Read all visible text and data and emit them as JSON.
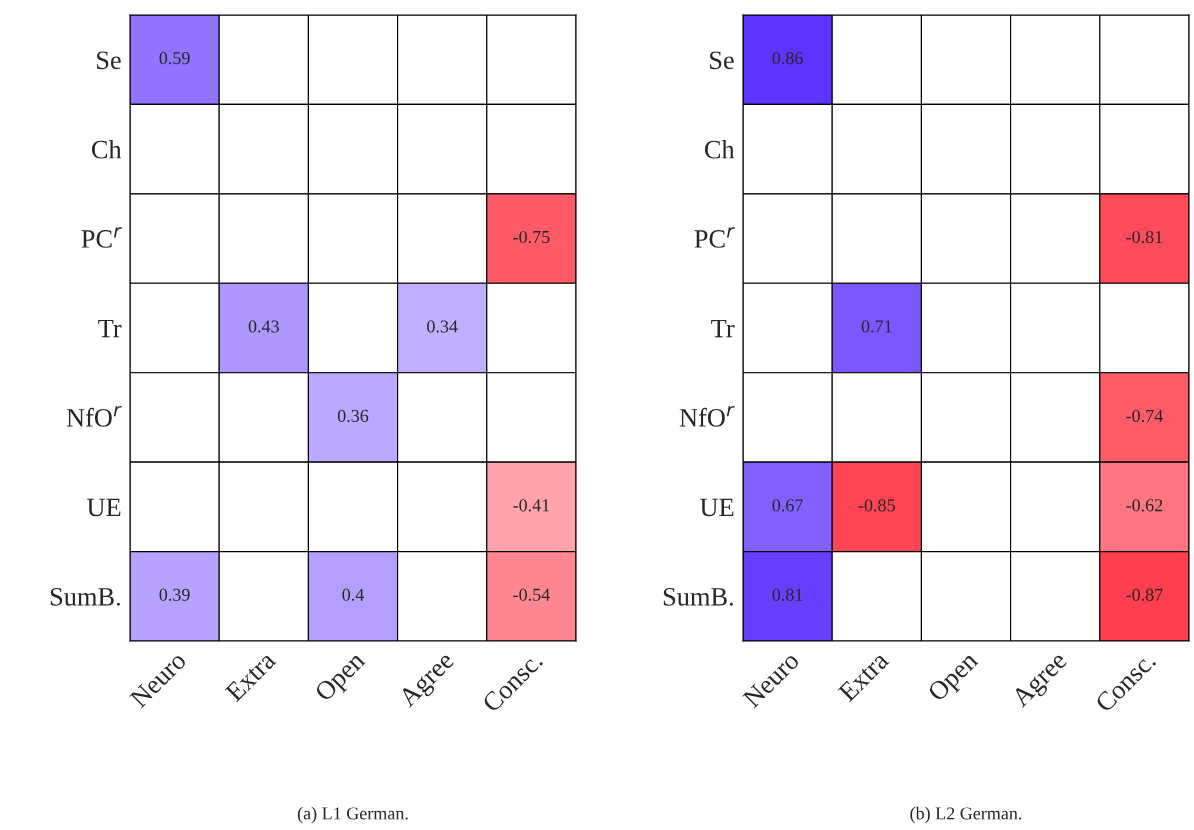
{
  "chart_data": [
    {
      "type": "heatmap",
      "categories": [
        "Neuro",
        "Extra",
        "Open",
        "Agree",
        "Consc."
      ],
      "y_categories": [
        "Se",
        "Ch",
        "PC$^{r}$",
        "Tr",
        "NfO$^{r}$",
        "UE",
        "SumB."
      ],
      "cells": [
        [
          0.59,
          null,
          null,
          null,
          null
        ],
        [
          null,
          null,
          null,
          null,
          null
        ],
        [
          null,
          null,
          null,
          null,
          -0.75
        ],
        [
          null,
          0.43,
          null,
          0.34,
          null
        ],
        [
          null,
          null,
          0.36,
          null,
          null
        ],
        [
          null,
          null,
          null,
          null,
          -0.41
        ],
        [
          0.39,
          null,
          0.4,
          null,
          -0.54
        ]
      ],
      "data_labels": true,
      "annotations": [
        "(a) L1 German."
      ]
    },
    {
      "type": "heatmap",
      "categories": [
        "Neuro",
        "Extra",
        "Open",
        "Agree",
        "Consc."
      ],
      "y_categories": [
        "Se",
        "Ch",
        "PC$^{r}$",
        "Tr",
        "NfO$^{r}$",
        "UE",
        "SumB."
      ],
      "cells": [
        [
          0.86,
          null,
          null,
          null,
          null
        ],
        [
          null,
          null,
          null,
          null,
          null
        ],
        [
          null,
          null,
          null,
          null,
          -0.81
        ],
        [
          null,
          0.71,
          null,
          null,
          null
        ],
        [
          null,
          null,
          null,
          null,
          -0.74
        ],
        [
          0.67,
          -0.85,
          null,
          null,
          -0.62
        ],
        [
          0.81,
          null,
          null,
          null,
          -0.87
        ]
      ],
      "data_labels": true,
      "annotations": [
        "(b) L2 German."
      ]
    }
  ]
}
